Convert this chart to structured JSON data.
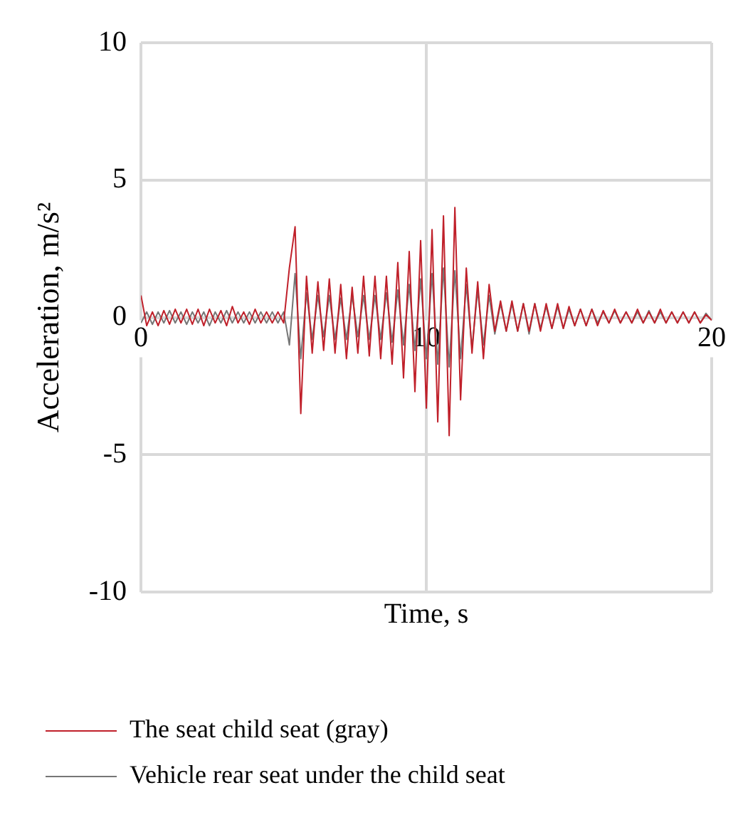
{
  "chart_data": {
    "type": "line",
    "xlabel": "Time, s",
    "ylabel": "Acceleration, m/s²",
    "x": [
      0,
      0.2,
      0.4,
      0.6,
      0.8,
      1,
      1.2,
      1.4,
      1.6,
      1.8,
      2,
      2.2,
      2.4,
      2.6,
      2.8,
      3,
      3.2,
      3.4,
      3.6,
      3.8,
      4,
      4.2,
      4.4,
      4.6,
      4.8,
      5,
      5.2,
      5.4,
      5.6,
      5.8,
      6,
      6.2,
      6.4,
      6.6,
      6.8,
      7,
      7.2,
      7.4,
      7.6,
      7.8,
      8,
      8.2,
      8.4,
      8.6,
      8.8,
      9,
      9.2,
      9.4,
      9.6,
      9.8,
      10,
      10.2,
      10.4,
      10.6,
      10.8,
      11,
      11.2,
      11.4,
      11.6,
      11.8,
      12,
      12.2,
      12.4,
      12.6,
      12.8,
      13,
      13.2,
      13.4,
      13.6,
      13.8,
      14,
      14.2,
      14.4,
      14.6,
      14.8,
      15,
      15.2,
      15.4,
      15.6,
      15.8,
      16,
      16.2,
      16.4,
      16.6,
      16.8,
      17,
      17.2,
      17.4,
      17.6,
      17.8,
      18,
      18.2,
      18.4,
      18.6,
      18.8,
      19,
      19.2,
      19.4,
      19.6,
      19.8,
      20
    ],
    "series": [
      {
        "name": "The seat child seat (gray)",
        "color": "#c0202a",
        "values": [
          0.8,
          -0.3,
          0.2,
          -0.3,
          0.25,
          -0.25,
          0.3,
          -0.2,
          0.3,
          -0.25,
          0.3,
          -0.3,
          0.3,
          -0.2,
          0.25,
          -0.3,
          0.4,
          -0.2,
          0.2,
          -0.25,
          0.3,
          -0.2,
          0.2,
          -0.2,
          0.2,
          -0.2,
          1.8,
          3.3,
          -3.5,
          1.5,
          -1.3,
          1.3,
          -1.2,
          1.4,
          -1.3,
          1.2,
          -1.5,
          1.1,
          -1.3,
          1.5,
          -1.4,
          1.5,
          -1.5,
          1.5,
          -1.7,
          2.0,
          -2.2,
          2.4,
          -2.7,
          2.8,
          -3.3,
          3.2,
          -3.8,
          3.7,
          -4.3,
          4.0,
          -3.0,
          1.8,
          -1.3,
          1.3,
          -1.5,
          1.2,
          -0.5,
          0.6,
          -0.5,
          0.6,
          -0.5,
          0.5,
          -0.5,
          0.5,
          -0.5,
          0.5,
          -0.4,
          0.5,
          -0.4,
          0.4,
          -0.3,
          0.3,
          -0.3,
          0.3,
          -0.3,
          0.25,
          -0.2,
          0.3,
          -0.2,
          0.2,
          -0.2,
          0.3,
          -0.2,
          0.2,
          -0.2,
          0.3,
          -0.2,
          0.2,
          -0.2,
          0.2,
          -0.2,
          0.2,
          -0.2,
          0.1,
          -0.1
        ]
      },
      {
        "name": "Vehicle rear seat under the child seat",
        "color": "#767676",
        "values": [
          -0.2,
          0.2,
          -0.25,
          0.2,
          -0.2,
          0.25,
          -0.2,
          0.2,
          -0.25,
          0.2,
          -0.2,
          0.2,
          -0.3,
          0.2,
          -0.2,
          0.25,
          -0.2,
          0.2,
          -0.2,
          0.2,
          -0.2,
          0.2,
          -0.2,
          0.2,
          -0.2,
          0.2,
          -1.0,
          1.6,
          -1.5,
          0.9,
          -0.8,
          0.8,
          -0.7,
          0.8,
          -0.8,
          0.7,
          -0.8,
          0.8,
          -0.7,
          0.8,
          -0.8,
          0.8,
          -0.8,
          0.9,
          -0.9,
          1.0,
          -1.0,
          1.2,
          -1.2,
          1.4,
          -1.5,
          1.6,
          -1.7,
          1.8,
          -1.8,
          1.7,
          -1.5,
          1.2,
          -1.1,
          1.0,
          -1.0,
          0.8,
          -0.6,
          0.5,
          -0.5,
          0.5,
          -0.5,
          0.5,
          -0.6,
          0.5,
          -0.4,
          0.4,
          -0.4,
          0.4,
          -0.4,
          0.3,
          -0.3,
          0.3,
          -0.3,
          0.3,
          -0.2,
          0.2,
          -0.2,
          0.25,
          -0.2,
          0.2,
          -0.2,
          0.2,
          -0.2,
          0.25,
          -0.2,
          0.2,
          -0.2,
          0.2,
          -0.2,
          0.2,
          -0.2,
          0.2,
          -0.2,
          0.15,
          -0.1
        ]
      }
    ],
    "xlim": [
      0,
      20
    ],
    "xticks": [
      0,
      10,
      20
    ],
    "ylim": [
      -10,
      10
    ],
    "yticks": [
      -10,
      -5,
      0,
      5,
      10
    ],
    "grid": true,
    "legend": "bottom left",
    "marker": "none",
    "line_style": "solid"
  }
}
